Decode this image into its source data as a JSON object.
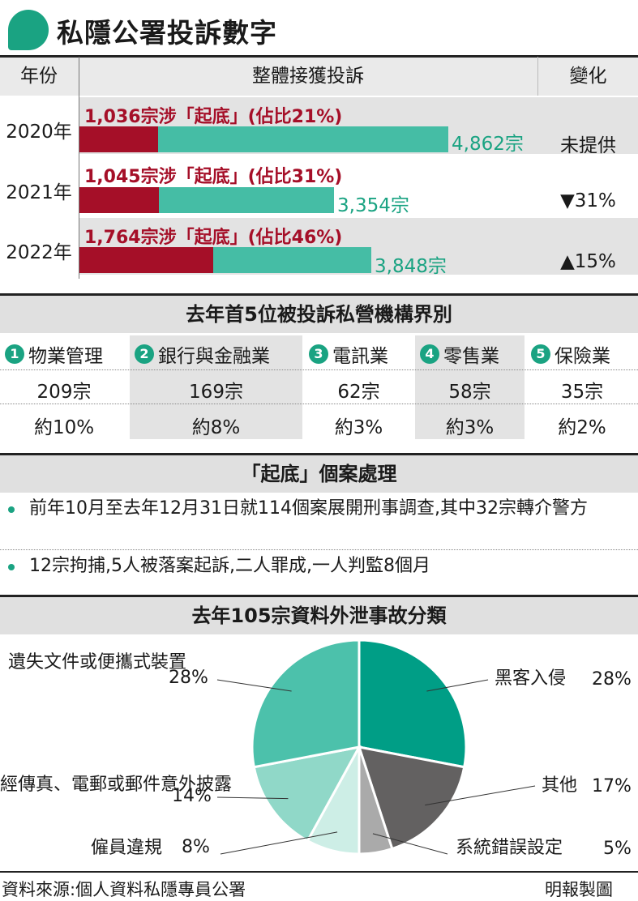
{
  "header": {
    "title": "私隱公署投訴數字"
  },
  "complaints_table": {
    "col_year": "年份",
    "col_total": "整體接獲投訴",
    "col_change": "變化",
    "rows": [
      {
        "year": "2020年",
        "label": "1,036宗涉「起底」(佔比21%)",
        "total_text": "4,862宗",
        "change": "未提供",
        "total": 4862,
        "doxxing": 1036
      },
      {
        "year": "2021年",
        "label": "1,045宗涉「起底」(佔比31%)",
        "total_text": "3,354宗",
        "change": "▼31%",
        "total": 3354,
        "doxxing": 1045
      },
      {
        "year": "2022年",
        "label": "1,764宗涉「起底」(佔比46%)",
        "total_text": "3,848宗",
        "change": "▲15%",
        "total": 3848,
        "doxxing": 1764
      }
    ]
  },
  "industries": {
    "title": "去年首5位被投訴私營機構界別",
    "items": [
      {
        "rank": "1",
        "name": "物業管理",
        "count": "209宗",
        "share": "約10%"
      },
      {
        "rank": "2",
        "name": "銀行與金融業",
        "count": "169宗",
        "share": "約8%"
      },
      {
        "rank": "3",
        "name": "電訊業",
        "count": "62宗",
        "share": "約3%"
      },
      {
        "rank": "4",
        "name": "零售業",
        "count": "58宗",
        "share": "約3%"
      },
      {
        "rank": "5",
        "name": "保險業",
        "count": "35宗",
        "share": "約2%"
      }
    ]
  },
  "doxxing_cases": {
    "title": "「起底」個案處理",
    "bullets": [
      "前年10月至去年12月31日就114個案展開刑事調查,其中32宗轉介警方",
      "12宗拘捕,5人被落案起訴,二人罪成,一人判監8個月"
    ]
  },
  "chart_data": [
    {
      "type": "bar",
      "categories": [
        "2020年",
        "2021年",
        "2022年"
      ],
      "series": [
        {
          "name": "整體接獲投訴",
          "values": [
            4862,
            3354,
            3848
          ]
        },
        {
          "name": "涉「起底」",
          "values": [
            1036,
            1045,
            1764
          ]
        }
      ]
    },
    {
      "type": "pie",
      "title": "去年105宗資料外泄事故分類",
      "slices": [
        {
          "label": "黑客入侵",
          "value": 28,
          "pct_text": "28%",
          "color": "#009e86"
        },
        {
          "label": "其他",
          "value": 17,
          "pct_text": "17%",
          "color": "#636161"
        },
        {
          "label": "系統錯誤設定",
          "value": 5,
          "pct_text": "5%",
          "color": "#aaaaaa"
        },
        {
          "label": "僱員違規",
          "value": 8,
          "pct_text": "8%",
          "color": "#cdeee6"
        },
        {
          "label": "經傳真、電郵或郵件意外披露",
          "value": 14,
          "pct_text": "14%",
          "color": "#90d8c8"
        },
        {
          "label": "遺失文件或便攜式裝置",
          "value": 28,
          "pct_text": "28%",
          "color": "#4cc1ab"
        }
      ]
    }
  ],
  "colors": {
    "teal": "#45bda5",
    "dark_red": "#a50f28",
    "accent_green": "#1aa382",
    "gray_bg": "#e3e3e3"
  },
  "footer": {
    "source": "資料來源:個人資料私隱專員公署",
    "credit": "明報製圖"
  }
}
